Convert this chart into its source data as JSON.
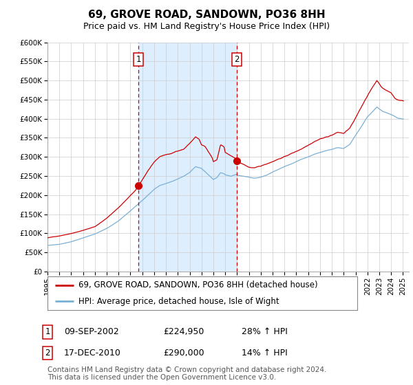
{
  "title": "69, GROVE ROAD, SANDOWN, PO36 8HH",
  "subtitle": "Price paid vs. HM Land Registry's House Price Index (HPI)",
  "xlim": [
    1995.0,
    2025.5
  ],
  "ylim": [
    0,
    600000
  ],
  "yticks": [
    0,
    50000,
    100000,
    150000,
    200000,
    250000,
    300000,
    350000,
    400000,
    450000,
    500000,
    550000,
    600000
  ],
  "ytick_labels": [
    "£0",
    "£50K",
    "£100K",
    "£150K",
    "£200K",
    "£250K",
    "£300K",
    "£350K",
    "£400K",
    "£450K",
    "£500K",
    "£550K",
    "£600K"
  ],
  "xticks": [
    1995,
    1996,
    1997,
    1998,
    1999,
    2000,
    2001,
    2002,
    2003,
    2004,
    2005,
    2006,
    2007,
    2008,
    2009,
    2010,
    2011,
    2012,
    2013,
    2014,
    2015,
    2016,
    2017,
    2018,
    2019,
    2020,
    2021,
    2022,
    2023,
    2024,
    2025
  ],
  "sale1_date": 2002.69,
  "sale1_price": 224950,
  "sale2_date": 2010.96,
  "sale2_price": 290000,
  "line1_color": "#cc0000",
  "line2_color": "#7ab0d4",
  "shade_color": "#ddeeff",
  "vline_color": "#cc0000",
  "grid_color": "#cccccc",
  "background_color": "#ffffff",
  "legend1_text": "69, GROVE ROAD, SANDOWN, PO36 8HH (detached house)",
  "legend2_text": "HPI: Average price, detached house, Isle of Wight",
  "table_row1": [
    "1",
    "09-SEP-2002",
    "£224,950",
    "28% ↑ HPI"
  ],
  "table_row2": [
    "2",
    "17-DEC-2010",
    "£290,000",
    "14% ↑ HPI"
  ],
  "footer1": "Contains HM Land Registry data © Crown copyright and database right 2024.",
  "footer2": "This data is licensed under the Open Government Licence v3.0.",
  "title_fontsize": 11,
  "subtitle_fontsize": 9,
  "tick_fontsize": 7.5,
  "legend_fontsize": 8.5,
  "table_fontsize": 9,
  "footer_fontsize": 7.5
}
